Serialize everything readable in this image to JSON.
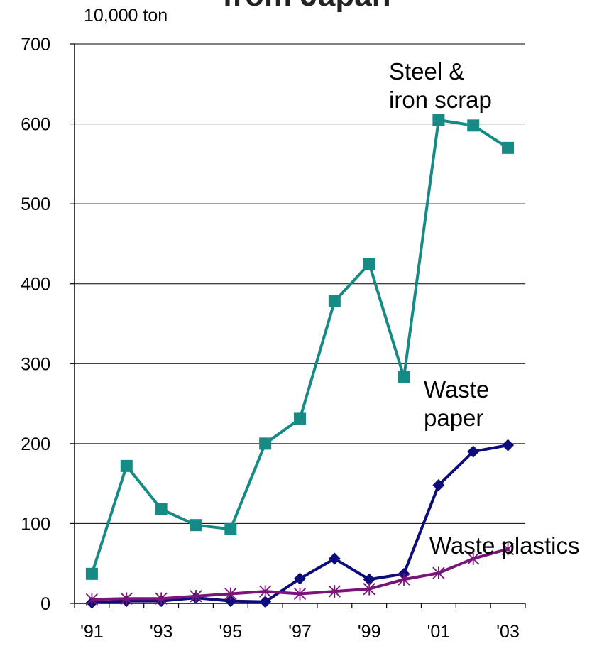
{
  "chart_data": {
    "type": "line",
    "title": "from Japan",
    "ylabel": "10,000 ton",
    "ylim": [
      0,
      700
    ],
    "yticks": [
      0,
      100,
      200,
      300,
      400,
      500,
      600,
      700
    ],
    "x": [
      "'91",
      "'92",
      "'93",
      "'94",
      "'95",
      "'96",
      "'97",
      "'98",
      "'99",
      "'00",
      "'01",
      "'02",
      "'03"
    ],
    "xtick_labels": [
      "'91",
      "'93",
      "'95",
      "'97",
      "'99",
      "'01",
      "'03"
    ],
    "grid": "horizontal",
    "series": [
      {
        "name": "Steel & iron scrap",
        "name_lines": [
          "Steel &",
          "iron scrap"
        ],
        "color": "#168a84",
        "marker": "square",
        "values": [
          37,
          172,
          118,
          98,
          93,
          200,
          231,
          378,
          425,
          283,
          605,
          598,
          570
        ]
      },
      {
        "name": "Waste paper",
        "name_lines": [
          "Waste",
          "paper"
        ],
        "color": "#0c0c7a",
        "marker": "diamond",
        "values": [
          1,
          3,
          3,
          7,
          3,
          2,
          31,
          56,
          30,
          37,
          148,
          190,
          198
        ]
      },
      {
        "name": "Waste plastics",
        "name_lines": [
          "Waste plastics"
        ],
        "color": "#7a137a",
        "marker": "asterisk",
        "values": [
          5,
          6,
          6,
          9,
          12,
          15,
          12,
          15,
          18,
          30,
          38,
          56,
          68
        ]
      }
    ]
  }
}
